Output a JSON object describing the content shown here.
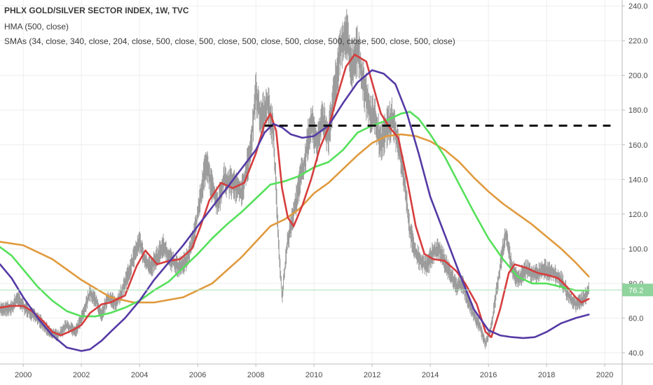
{
  "header": {
    "title": "PHLX GOLD/SILVER SECTOR INDEX, 1W, TVC",
    "hma": "HMA (500, close)",
    "smas": "SMAs (34, close, 340, close, 204, close, 500, close, 500, close, 500, close, 500, close, 500, close, 500, close, 500, close)"
  },
  "chart_data": {
    "type": "line",
    "title": "PHLX GOLD/SILVER SECTOR INDEX, 1W, TVC",
    "xlim": [
      1999.2,
      2020.6
    ],
    "ylim": [
      33.5,
      243.5
    ],
    "x_ticks": [
      "2000",
      "2002",
      "2004",
      "2006",
      "2008",
      "2010",
      "2012",
      "2014",
      "2016",
      "2018",
      "2020"
    ],
    "y_ticks": [
      "40.0",
      "60.0",
      "80.0",
      "100.0",
      "120.0",
      "140.0",
      "160.0",
      "180.0",
      "200.0",
      "220.0",
      "240.0"
    ],
    "last_price": {
      "value": 76.2,
      "label": "76.2",
      "color": "#8fd39d"
    },
    "resistance_level": 171,
    "resistance_x_range": [
      2008.3,
      2020.2
    ],
    "colors": {
      "price": "#9a9a9a",
      "last_price_line": "#a6e1b4",
      "resistance": "#111111",
      "grid": "#eeeeee",
      "axis": "#bbbbbb"
    },
    "price_path": [
      [
        1999.2,
        65
      ],
      [
        1999.6,
        66
      ],
      [
        1999.8,
        72
      ],
      [
        2000.0,
        67
      ],
      [
        2000.3,
        62
      ],
      [
        2000.6,
        58
      ],
      [
        2000.9,
        52
      ],
      [
        2001.2,
        50
      ],
      [
        2001.5,
        56
      ],
      [
        2001.8,
        52
      ],
      [
        2002.0,
        60
      ],
      [
        2002.3,
        75
      ],
      [
        2002.5,
        70
      ],
      [
        2002.7,
        62
      ],
      [
        2002.9,
        72
      ],
      [
        2003.2,
        68
      ],
      [
        2003.5,
        80
      ],
      [
        2003.8,
        95
      ],
      [
        2004.0,
        105
      ],
      [
        2004.2,
        92
      ],
      [
        2004.4,
        90
      ],
      [
        2004.6,
        95
      ],
      [
        2004.8,
        102
      ],
      [
        2005.0,
        95
      ],
      [
        2005.3,
        90
      ],
      [
        2005.6,
        92
      ],
      [
        2005.9,
        110
      ],
      [
        2006.1,
        130
      ],
      [
        2006.3,
        150
      ],
      [
        2006.5,
        135
      ],
      [
        2006.7,
        125
      ],
      [
        2006.9,
        140
      ],
      [
        2007.2,
        138
      ],
      [
        2007.5,
        132
      ],
      [
        2007.8,
        155
      ],
      [
        2008.0,
        190
      ],
      [
        2008.2,
        175
      ],
      [
        2008.4,
        185
      ],
      [
        2008.6,
        168
      ],
      [
        2008.8,
        98
      ],
      [
        2008.9,
        72
      ],
      [
        2009.1,
        105
      ],
      [
        2009.3,
        120
      ],
      [
        2009.5,
        138
      ],
      [
        2009.7,
        152
      ],
      [
        2009.9,
        175
      ],
      [
        2010.1,
        160
      ],
      [
        2010.3,
        175
      ],
      [
        2010.5,
        165
      ],
      [
        2010.7,
        190
      ],
      [
        2010.9,
        215
      ],
      [
        2011.1,
        225
      ],
      [
        2011.3,
        205
      ],
      [
        2011.5,
        215
      ],
      [
        2011.7,
        195
      ],
      [
        2011.9,
        180
      ],
      [
        2012.1,
        175
      ],
      [
        2012.3,
        160
      ],
      [
        2012.5,
        170
      ],
      [
        2012.7,
        175
      ],
      [
        2012.9,
        160
      ],
      [
        2013.1,
        140
      ],
      [
        2013.3,
        110
      ],
      [
        2013.5,
        98
      ],
      [
        2013.7,
        92
      ],
      [
        2013.9,
        90
      ],
      [
        2014.1,
        98
      ],
      [
        2014.3,
        100
      ],
      [
        2014.5,
        92
      ],
      [
        2014.7,
        85
      ],
      [
        2014.9,
        78
      ],
      [
        2015.1,
        80
      ],
      [
        2015.3,
        70
      ],
      [
        2015.5,
        62
      ],
      [
        2015.7,
        55
      ],
      [
        2015.9,
        45
      ],
      [
        2016.1,
        55
      ],
      [
        2016.3,
        78
      ],
      [
        2016.5,
        100
      ],
      [
        2016.6,
        108
      ],
      [
        2016.8,
        90
      ],
      [
        2017.0,
        82
      ],
      [
        2017.3,
        88
      ],
      [
        2017.6,
        85
      ],
      [
        2017.9,
        88
      ],
      [
        2018.2,
        87
      ],
      [
        2018.5,
        82
      ],
      [
        2018.8,
        72
      ],
      [
        2019.0,
        68
      ],
      [
        2019.2,
        70
      ],
      [
        2019.4,
        74
      ],
      [
        2019.45,
        76.2
      ]
    ],
    "series": [
      {
        "color": "#e09a3e",
        "points": [
          [
            1999.2,
            104
          ],
          [
            2000.0,
            102
          ],
          [
            2001.0,
            94
          ],
          [
            2002.0,
            82
          ],
          [
            2003.0,
            72
          ],
          [
            2003.8,
            69
          ],
          [
            2004.5,
            69
          ],
          [
            2005.5,
            72
          ],
          [
            2006.5,
            80
          ],
          [
            2007.5,
            95
          ],
          [
            2008.5,
            113
          ],
          [
            2009.0,
            117
          ],
          [
            2009.5,
            123
          ],
          [
            2010.0,
            132
          ],
          [
            2010.5,
            138
          ],
          [
            2011.0,
            146
          ],
          [
            2011.5,
            154
          ],
          [
            2012.0,
            161
          ],
          [
            2012.5,
            165
          ],
          [
            2013.0,
            166
          ],
          [
            2013.5,
            165
          ],
          [
            2014.0,
            162
          ],
          [
            2014.5,
            157
          ],
          [
            2015.0,
            150
          ],
          [
            2015.5,
            141
          ],
          [
            2016.0,
            133
          ],
          [
            2016.5,
            126
          ],
          [
            2017.0,
            120
          ],
          [
            2017.5,
            114
          ],
          [
            2018.0,
            107
          ],
          [
            2018.5,
            100
          ],
          [
            2019.0,
            92
          ],
          [
            2019.45,
            84
          ]
        ]
      },
      {
        "color": "#55e05a",
        "points": [
          [
            1999.2,
            101
          ],
          [
            1999.6,
            96
          ],
          [
            2000.0,
            88
          ],
          [
            2000.5,
            78
          ],
          [
            2001.0,
            70
          ],
          [
            2001.5,
            64
          ],
          [
            2002.0,
            61
          ],
          [
            2002.5,
            61
          ],
          [
            2003.0,
            63
          ],
          [
            2003.5,
            66
          ],
          [
            2004.0,
            70
          ],
          [
            2004.5,
            76
          ],
          [
            2005.0,
            81
          ],
          [
            2005.5,
            89
          ],
          [
            2006.0,
            97
          ],
          [
            2006.5,
            106
          ],
          [
            2007.0,
            114
          ],
          [
            2007.5,
            121
          ],
          [
            2008.0,
            129
          ],
          [
            2008.5,
            137
          ],
          [
            2009.0,
            139
          ],
          [
            2009.5,
            142
          ],
          [
            2010.0,
            147
          ],
          [
            2010.5,
            150
          ],
          [
            2011.0,
            157
          ],
          [
            2011.5,
            167
          ],
          [
            2012.0,
            171
          ],
          [
            2012.5,
            174
          ],
          [
            2013.0,
            178
          ],
          [
            2013.3,
            179
          ],
          [
            2013.6,
            175
          ],
          [
            2014.0,
            166
          ],
          [
            2014.5,
            153
          ],
          [
            2015.0,
            137
          ],
          [
            2015.5,
            121
          ],
          [
            2016.0,
            106
          ],
          [
            2016.5,
            94
          ],
          [
            2017.0,
            84
          ],
          [
            2017.5,
            80
          ],
          [
            2018.0,
            80
          ],
          [
            2018.5,
            78
          ],
          [
            2019.0,
            76
          ],
          [
            2019.45,
            76
          ]
        ]
      },
      {
        "color": "#d63d3d",
        "points": [
          [
            1999.2,
            66
          ],
          [
            1999.6,
            67
          ],
          [
            2000.0,
            67
          ],
          [
            2000.3,
            64
          ],
          [
            2000.7,
            58
          ],
          [
            2001.0,
            52
          ],
          [
            2001.3,
            50
          ],
          [
            2001.7,
            53
          ],
          [
            2002.0,
            56
          ],
          [
            2002.3,
            63
          ],
          [
            2002.7,
            68
          ],
          [
            2003.0,
            69
          ],
          [
            2003.5,
            73
          ],
          [
            2003.9,
            90
          ],
          [
            2004.2,
            99
          ],
          [
            2004.6,
            91
          ],
          [
            2005.0,
            93
          ],
          [
            2005.4,
            94
          ],
          [
            2005.8,
            100
          ],
          [
            2006.1,
            113
          ],
          [
            2006.4,
            128
          ],
          [
            2006.8,
            138
          ],
          [
            2007.2,
            135
          ],
          [
            2007.6,
            138
          ],
          [
            2008.0,
            155
          ],
          [
            2008.3,
            172
          ],
          [
            2008.5,
            178
          ],
          [
            2008.7,
            168
          ],
          [
            2008.9,
            135
          ],
          [
            2009.1,
            118
          ],
          [
            2009.3,
            113
          ],
          [
            2009.6,
            125
          ],
          [
            2009.9,
            140
          ],
          [
            2010.2,
            158
          ],
          [
            2010.5,
            170
          ],
          [
            2010.8,
            188
          ],
          [
            2011.1,
            205
          ],
          [
            2011.4,
            212
          ],
          [
            2011.8,
            208
          ],
          [
            2012.0,
            196
          ],
          [
            2012.3,
            178
          ],
          [
            2012.6,
            170
          ],
          [
            2012.9,
            164
          ],
          [
            2013.2,
            140
          ],
          [
            2013.5,
            113
          ],
          [
            2013.8,
            97
          ],
          [
            2014.1,
            94
          ],
          [
            2014.5,
            93
          ],
          [
            2014.9,
            87
          ],
          [
            2015.2,
            80
          ],
          [
            2015.6,
            68
          ],
          [
            2015.9,
            52
          ],
          [
            2016.1,
            49
          ],
          [
            2016.4,
            65
          ],
          [
            2016.7,
            86
          ],
          [
            2016.9,
            91
          ],
          [
            2017.3,
            89
          ],
          [
            2017.7,
            86
          ],
          [
            2018.0,
            85
          ],
          [
            2018.4,
            83
          ],
          [
            2018.7,
            78
          ],
          [
            2019.0,
            72
          ],
          [
            2019.2,
            69
          ],
          [
            2019.45,
            71
          ]
        ]
      },
      {
        "color": "#553aa5",
        "points": [
          [
            1999.2,
            91
          ],
          [
            1999.6,
            83
          ],
          [
            2000.0,
            72
          ],
          [
            2000.5,
            60
          ],
          [
            2001.0,
            50
          ],
          [
            2001.5,
            43
          ],
          [
            2002.0,
            41
          ],
          [
            2002.3,
            42
          ],
          [
            2002.7,
            47
          ],
          [
            2003.0,
            52
          ],
          [
            2003.5,
            60
          ],
          [
            2004.0,
            70
          ],
          [
            2004.5,
            82
          ],
          [
            2005.0,
            92
          ],
          [
            2005.5,
            102
          ],
          [
            2006.0,
            113
          ],
          [
            2006.5,
            124
          ],
          [
            2007.0,
            135
          ],
          [
            2007.5,
            146
          ],
          [
            2008.0,
            157
          ],
          [
            2008.3,
            167
          ],
          [
            2008.6,
            172
          ],
          [
            2008.9,
            170
          ],
          [
            2009.2,
            166
          ],
          [
            2009.6,
            164
          ],
          [
            2010.0,
            165
          ],
          [
            2010.5,
            171
          ],
          [
            2011.0,
            184
          ],
          [
            2011.5,
            196
          ],
          [
            2012.0,
            203
          ],
          [
            2012.4,
            201
          ],
          [
            2012.8,
            195
          ],
          [
            2013.2,
            178
          ],
          [
            2013.6,
            155
          ],
          [
            2014.0,
            130
          ],
          [
            2014.5,
            108
          ],
          [
            2015.0,
            86
          ],
          [
            2015.5,
            65
          ],
          [
            2016.0,
            53
          ],
          [
            2016.4,
            50
          ],
          [
            2016.8,
            49
          ],
          [
            2017.2,
            48.5
          ],
          [
            2017.6,
            49
          ],
          [
            2018.0,
            52
          ],
          [
            2018.5,
            57
          ],
          [
            2019.0,
            60
          ],
          [
            2019.45,
            62
          ]
        ]
      }
    ]
  }
}
